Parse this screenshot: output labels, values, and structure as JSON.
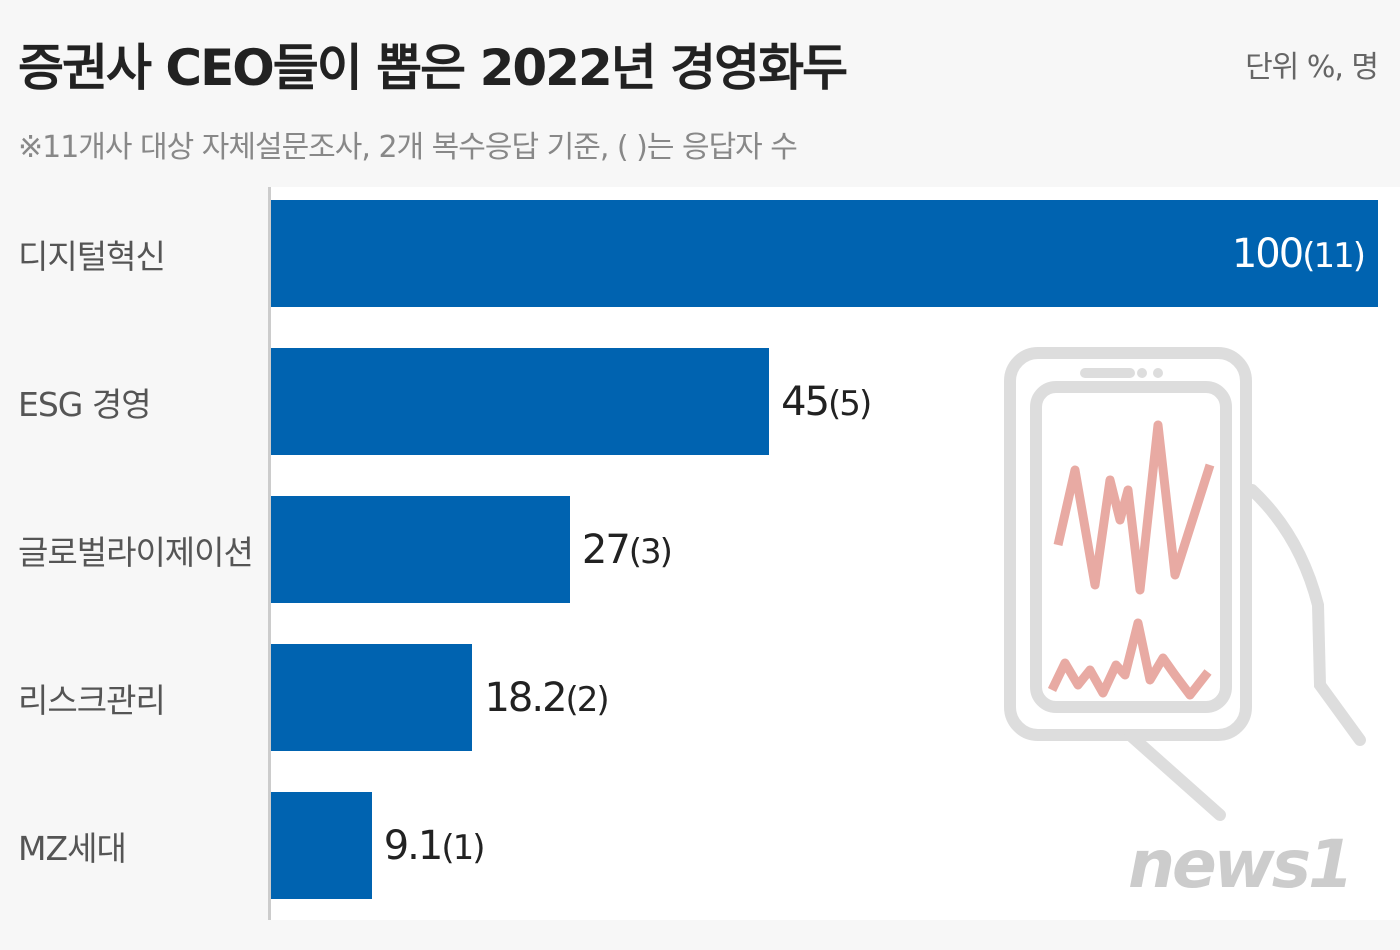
{
  "header": {
    "title": "증권사 CEO들이 뽑은 2022년 경영화두",
    "unit": "단위 %, 명",
    "subtitle": "※11개사 대상 자체설문조사, 2개 복수응답 기준, ( )는 응답자 수"
  },
  "chart_data": {
    "type": "bar",
    "orientation": "horizontal",
    "title": "증권사 CEO들이 뽑은 2022년 경영화두",
    "categories": [
      "디지털혁신",
      "ESG 경영",
      "글로벌라이제이션",
      "리스크관리",
      "MZ세대"
    ],
    "values": [
      100,
      45,
      27,
      18.2,
      9.1
    ],
    "respondents": [
      11,
      5,
      3,
      2,
      1
    ],
    "value_labels": [
      "100",
      "45",
      "27",
      "18.2",
      "9.1"
    ],
    "respondent_labels": [
      "(11)",
      "(5)",
      "(3)",
      "(2)",
      "(1)"
    ],
    "xlim": [
      0,
      100
    ],
    "grid": false,
    "bar_color": "#0063b0"
  },
  "logo": {
    "text": "news1"
  }
}
